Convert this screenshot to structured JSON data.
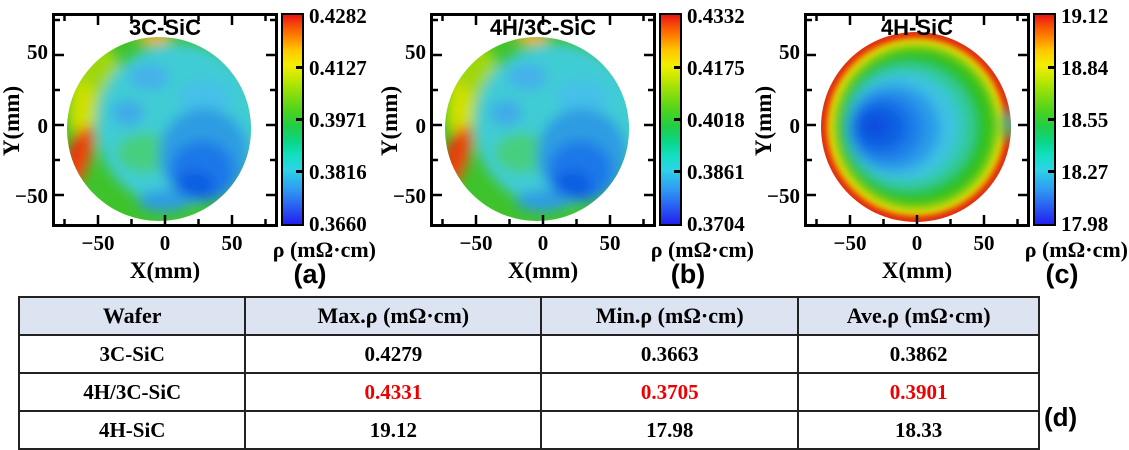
{
  "figure": {
    "panels": [
      {
        "letter": "(a)",
        "title": "3C-SiC",
        "xlabel": "X(mm)",
        "ylabel": "Y(mm)",
        "xticks": [
          "−50",
          "0",
          "50"
        ],
        "yticks": [
          "50",
          "0",
          "−50"
        ],
        "colorbar": {
          "label": "ρ (mΩ·cm)",
          "ticks": [
            "0.4282",
            "0.4127",
            "0.3971",
            "0.3816",
            "0.3660"
          ]
        }
      },
      {
        "letter": "(b)",
        "title": "4H/3C-SiC",
        "xlabel": "X(mm)",
        "ylabel": "Y(mm)",
        "xticks": [
          "−50",
          "0",
          "50"
        ],
        "yticks": [
          "50",
          "0",
          "−50"
        ],
        "colorbar": {
          "label": "ρ (mΩ·cm)",
          "ticks": [
            "0.4332",
            "0.4175",
            "0.4018",
            "0.3861",
            "0.3704"
          ]
        }
      },
      {
        "letter": "(c)",
        "title": "4H-SiC",
        "xlabel": "X(mm)",
        "ylabel": "Y(mm)",
        "xticks": [
          "−50",
          "0",
          "50"
        ],
        "yticks": [
          "50",
          "0",
          "−50"
        ],
        "colorbar": {
          "label": "ρ (mΩ·cm)",
          "ticks": [
            "19.12",
            "18.84",
            "18.55",
            "18.27",
            "17.98"
          ]
        }
      }
    ],
    "table": {
      "letter": "(d)",
      "header_bg": "#dbe4f0",
      "highlight_color": "#ee0000",
      "headers": [
        "Wafer",
        "Max.ρ (mΩ·cm)",
        "Min.ρ (mΩ·cm)",
        "Ave.ρ (mΩ·cm)"
      ],
      "rows": [
        {
          "wafer": "3C-SiC",
          "max": "0.4279",
          "min": "0.3663",
          "ave": "0.3862",
          "highlight": false
        },
        {
          "wafer": "4H/3C-SiC",
          "max": "0.4331",
          "min": "0.3705",
          "ave": "0.3901",
          "highlight": true
        },
        {
          "wafer": "4H-SiC",
          "max": "19.12",
          "min": "17.98",
          "ave": "18.33",
          "highlight": false
        }
      ]
    }
  },
  "chart_data": [
    {
      "type": "heatmap",
      "subtype": "wafer-contour-map",
      "panel": "(a)",
      "title": "3C-SiC",
      "xlabel": "X(mm)",
      "ylabel": "Y(mm)",
      "xticks": [
        -50,
        0,
        50
      ],
      "yticks": [
        50,
        0,
        -50
      ],
      "xlim": [
        -75,
        85
      ],
      "ylim": [
        -80,
        85
      ],
      "colorbar_label": "ρ (mΩ·cm)",
      "colorbar_ticks": [
        0.366,
        0.3816,
        0.3971,
        0.4127,
        0.4282
      ],
      "zmin": 0.366,
      "zmax": 0.4282,
      "colormap": "jet",
      "pattern": "circular wafer, cyan interior; green/yellow-green band on left and top rim; red-orange hotspot on lower-left rim; light-blue patches upper-center and left-center; large blue low-resistivity region right-of-center extending to bottom, deepest blue near bottom-right of center"
    },
    {
      "type": "heatmap",
      "subtype": "wafer-contour-map",
      "panel": "(b)",
      "title": "4H/3C-SiC",
      "xlabel": "X(mm)",
      "ylabel": "Y(mm)",
      "xticks": [
        -50,
        0,
        50
      ],
      "yticks": [
        50,
        0,
        -50
      ],
      "xlim": [
        -75,
        85
      ],
      "ylim": [
        -80,
        85
      ],
      "colorbar_label": "ρ (mΩ·cm)",
      "colorbar_ticks": [
        0.3704,
        0.3861,
        0.4018,
        0.4175,
        0.4332
      ],
      "zmin": 0.3704,
      "zmax": 0.4332,
      "colormap": "jet",
      "pattern": "nearly identical spatial pattern to panel (a): cyan interior, green left/top rim, red-orange lower-left rim hotspot, blue minimum right-of-center toward bottom"
    },
    {
      "type": "heatmap",
      "subtype": "wafer-contour-map",
      "panel": "(c)",
      "title": "4H-SiC",
      "xlabel": "X(mm)",
      "ylabel": "Y(mm)",
      "xticks": [
        -50,
        0,
        50
      ],
      "yticks": [
        50,
        0,
        -50
      ],
      "xlim": [
        -75,
        85
      ],
      "ylim": [
        -80,
        85
      ],
      "colorbar_label": "ρ (mΩ·cm)",
      "colorbar_ticks": [
        17.98,
        18.27,
        18.55,
        18.84,
        19.12
      ],
      "zmin": 17.98,
      "zmax": 19.12,
      "colormap": "jet",
      "pattern": "concentric distribution: thin red-orange high-resistivity rim, green mid ring, cyan transition, blue minimum region left-of-center; faint vertical seam from top rim to wafer center"
    },
    {
      "type": "table",
      "panel": "(d)",
      "columns": [
        "Wafer",
        "Max.ρ (mΩ·cm)",
        "Min.ρ (mΩ·cm)",
        "Ave.ρ (mΩ·cm)"
      ],
      "rows": [
        [
          "3C-SiC",
          0.4279,
          0.3663,
          0.3862
        ],
        [
          "4H/3C-SiC",
          0.4331,
          0.3705,
          0.3901
        ],
        [
          "4H-SiC",
          19.12,
          17.98,
          18.33
        ]
      ],
      "highlighted_row": "4H/3C-SiC"
    }
  ]
}
